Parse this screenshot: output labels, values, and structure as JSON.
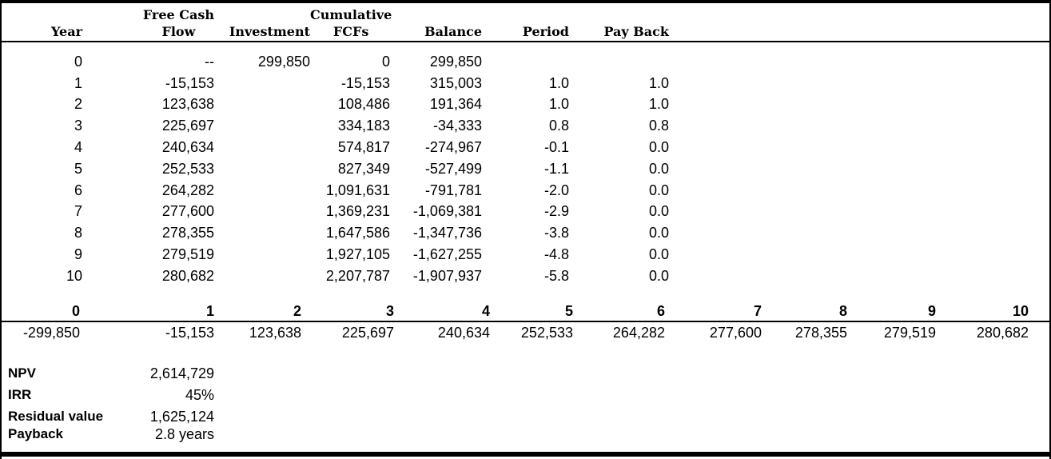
{
  "colors": {
    "text": "#000000",
    "background": "#ffffff",
    "rule": "#000000"
  },
  "table": {
    "headers": {
      "year": "Year",
      "fcf_line1": "Free Cash",
      "fcf_line2": "Flow",
      "investment": "Investment",
      "cum_line1": "Cumulative",
      "cum_line2": "FCFs",
      "balance": "Balance",
      "period": "Period",
      "payback": "Pay Back"
    },
    "rows": [
      {
        "year": "0",
        "fcf": "--",
        "investment": "299,850",
        "cum": "0",
        "balance": "299,850",
        "period": "",
        "payback": ""
      },
      {
        "year": "1",
        "fcf": "-15,153",
        "investment": "",
        "cum": "-15,153",
        "balance": "315,003",
        "period": "1.0",
        "payback": "1.0"
      },
      {
        "year": "2",
        "fcf": "123,638",
        "investment": "",
        "cum": "108,486",
        "balance": "191,364",
        "period": "1.0",
        "payback": "1.0"
      },
      {
        "year": "3",
        "fcf": "225,697",
        "investment": "",
        "cum": "334,183",
        "balance": "-34,333",
        "period": "0.8",
        "payback": "0.8"
      },
      {
        "year": "4",
        "fcf": "240,634",
        "investment": "",
        "cum": "574,817",
        "balance": "-274,967",
        "period": "-0.1",
        "payback": "0.0"
      },
      {
        "year": "5",
        "fcf": "252,533",
        "investment": "",
        "cum": "827,349",
        "balance": "-527,499",
        "period": "-1.1",
        "payback": "0.0"
      },
      {
        "year": "6",
        "fcf": "264,282",
        "investment": "",
        "cum": "1,091,631",
        "balance": "-791,781",
        "period": "-2.0",
        "payback": "0.0"
      },
      {
        "year": "7",
        "fcf": "277,600",
        "investment": "",
        "cum": "1,369,231",
        "balance": "-1,069,381",
        "period": "-2.9",
        "payback": "0.0"
      },
      {
        "year": "8",
        "fcf": "278,355",
        "investment": "",
        "cum": "1,647,586",
        "balance": "-1,347,736",
        "period": "-3.8",
        "payback": "0.0"
      },
      {
        "year": "9",
        "fcf": "279,519",
        "investment": "",
        "cum": "1,927,105",
        "balance": "-1,627,255",
        "period": "-4.8",
        "payback": "0.0"
      },
      {
        "year": "10",
        "fcf": "280,682",
        "investment": "",
        "cum": "2,207,787",
        "balance": "-1,907,937",
        "period": "-5.8",
        "payback": "0.0"
      }
    ]
  },
  "cashflow_strip": {
    "headers": [
      "0",
      "1",
      "2",
      "3",
      "4",
      "5",
      "6",
      "7",
      "8",
      "9",
      "10"
    ],
    "values": [
      "-299,850",
      "-15,153",
      "123,638",
      "225,697",
      "240,634",
      "252,533",
      "264,282",
      "277,600",
      "278,355",
      "279,519",
      "280,682"
    ]
  },
  "summary": {
    "npv": {
      "label": "NPV",
      "value": "2,614,729"
    },
    "irr": {
      "label": "IRR",
      "value": "45%"
    },
    "residual": {
      "label": "Residual value",
      "value": "1,625,124"
    },
    "payback": {
      "label": "Payback",
      "value": "2.8 years"
    }
  }
}
